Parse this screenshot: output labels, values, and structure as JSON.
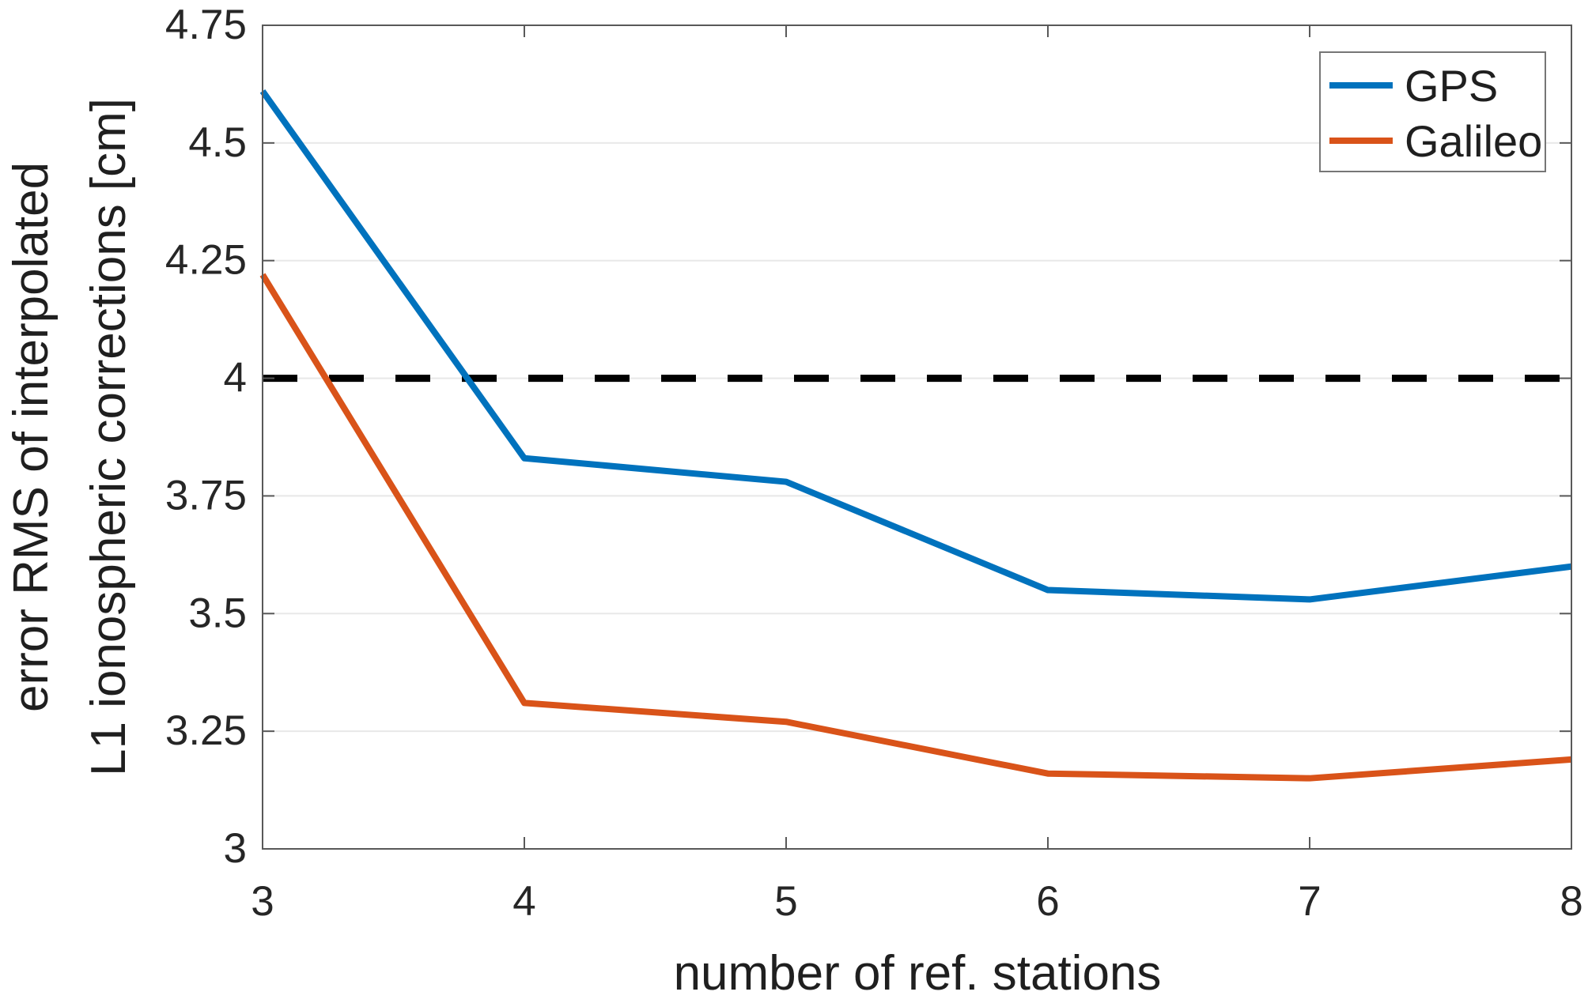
{
  "figure": {
    "background": "#ffffff"
  },
  "chart_data": {
    "type": "line",
    "title": "",
    "xlabel": "number of ref. stations",
    "ylabel_lines": [
      "error RMS of interpolated",
      "L1 ionospheric corrections [cm]"
    ],
    "xlim": [
      3,
      8
    ],
    "ylim": [
      3,
      4.75
    ],
    "xticks": [
      3,
      4,
      5,
      6,
      7,
      8
    ],
    "xtick_labels": [
      "3",
      "4",
      "5",
      "6",
      "7",
      "8"
    ],
    "yticks": [
      3,
      3.25,
      3.5,
      3.75,
      4,
      4.25,
      4.5,
      4.75
    ],
    "ytick_labels": [
      "3",
      "3.25",
      "3.5",
      "3.75",
      "4",
      "4.25",
      "4.5",
      "4.75"
    ],
    "grid": "horizontal",
    "x": [
      3,
      4,
      5,
      6,
      7,
      8
    ],
    "series": [
      {
        "name": "GPS",
        "color": "#0072BD",
        "values": [
          4.61,
          3.83,
          3.78,
          3.55,
          3.53,
          3.6
        ]
      },
      {
        "name": "Galileo",
        "color": "#D95319",
        "values": [
          4.22,
          3.31,
          3.27,
          3.16,
          3.15,
          3.19
        ]
      }
    ],
    "threshold": {
      "y": 4.0,
      "style": "dashed",
      "color": "#000000"
    },
    "legend": {
      "position": "top-right",
      "items": [
        {
          "label": "GPS",
          "color": "#0072BD"
        },
        {
          "label": "Galileo",
          "color": "#D95319"
        }
      ]
    }
  },
  "styles": {
    "axis_color": "#595959",
    "grid_color": "#e8e8e8",
    "text_color": "#262626",
    "legend_border": "#767676",
    "legend_background": "#ffffff"
  }
}
